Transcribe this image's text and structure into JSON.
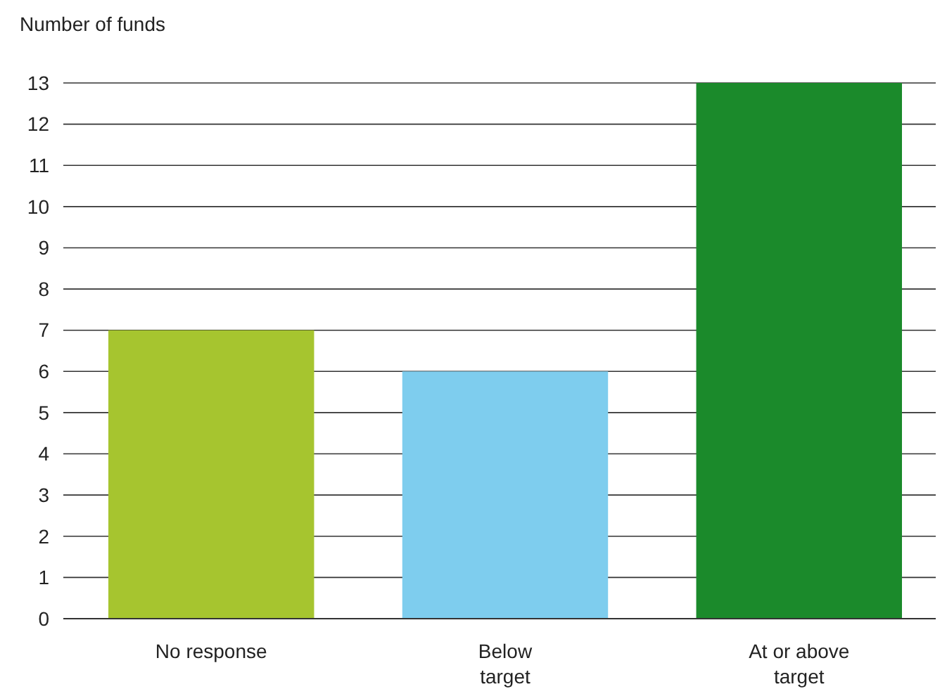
{
  "chart_data": {
    "type": "bar",
    "ylabel": "Number of funds",
    "categories": [
      "No response",
      "Below\ntarget",
      "At or above\ntarget"
    ],
    "values": [
      7,
      6,
      13
    ],
    "colors": [
      "#a6c52f",
      "#7ecdee",
      "#1b8a2b"
    ],
    "ylim": [
      0,
      13
    ],
    "yticks": [
      0,
      1,
      2,
      3,
      4,
      5,
      6,
      7,
      8,
      9,
      10,
      11,
      12,
      13
    ],
    "grid": "y"
  }
}
